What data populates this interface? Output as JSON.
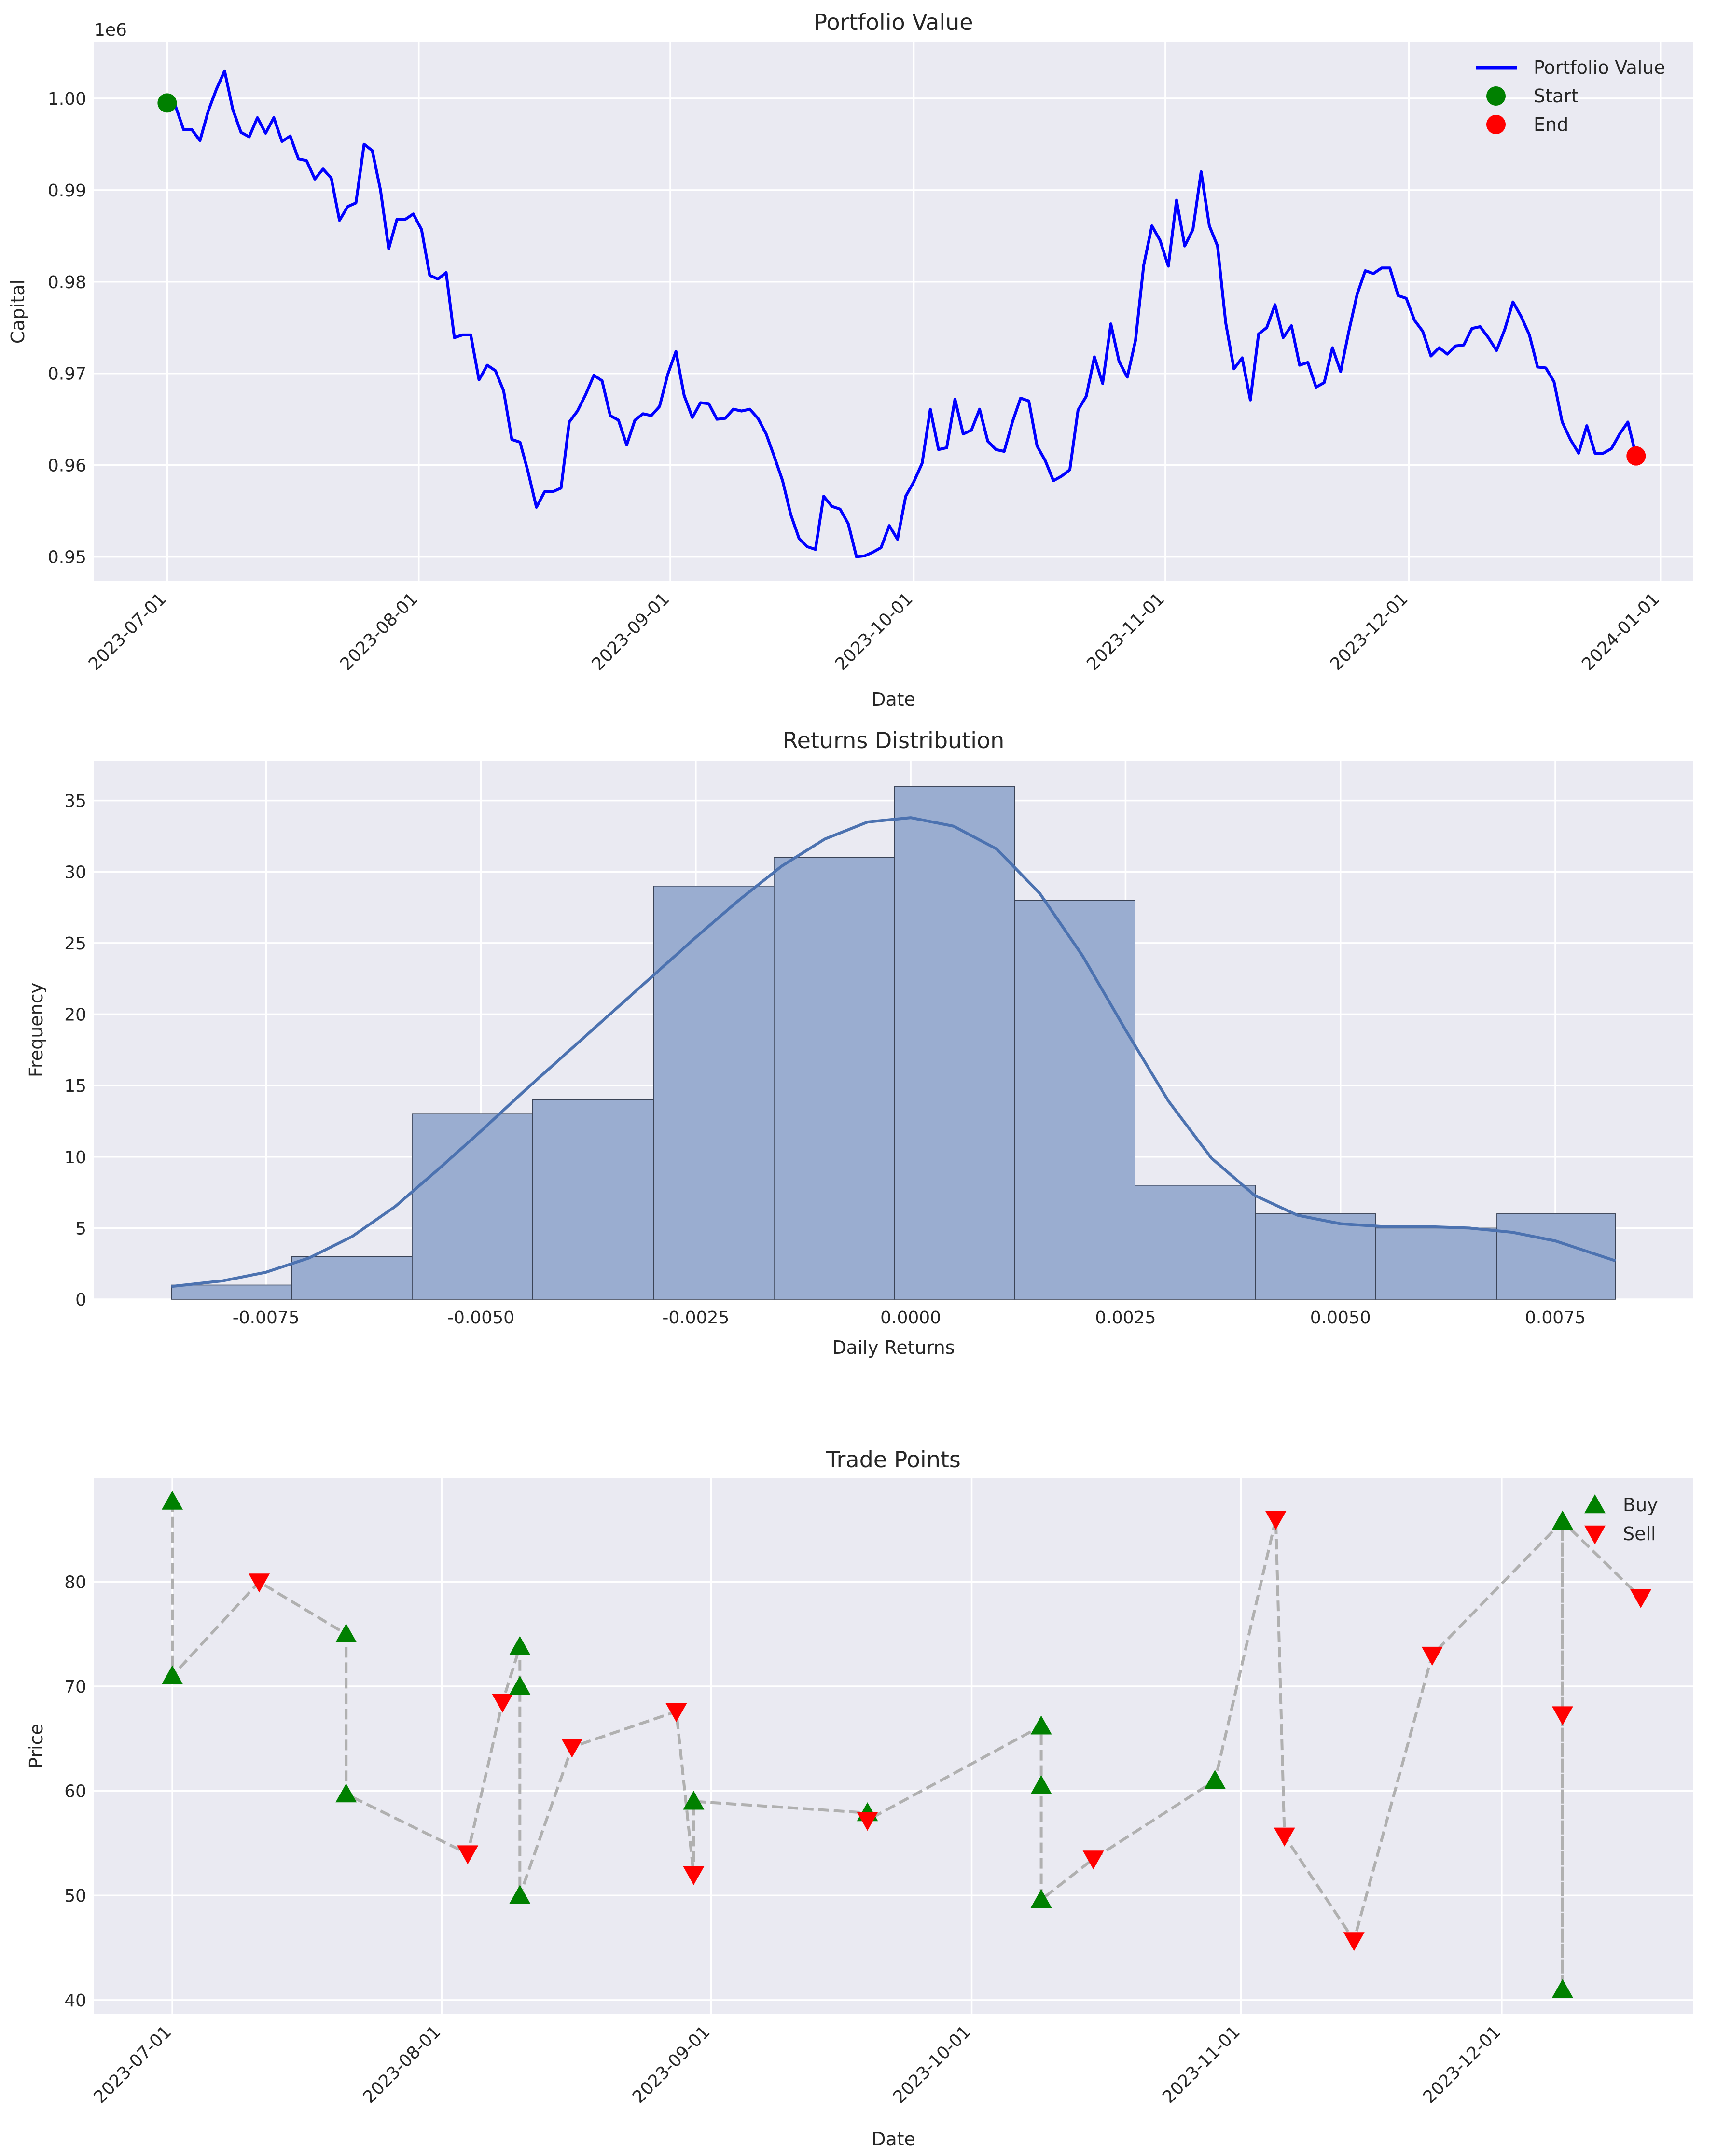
{
  "colors": {
    "background": "#eaeaf2",
    "grid": "#ffffff",
    "portfolio_line": "#0000ff",
    "start_marker": "#008000",
    "end_marker": "#ff0000",
    "hist_fill": "#9aadd0",
    "hist_edge": "#3a4356",
    "kde_line": "#4c72b0",
    "buy_marker": "#008000",
    "sell_marker": "#ff0000",
    "trade_path": "#b0b0b0"
  },
  "chart_data": [
    {
      "type": "line",
      "title": "Portfolio Value",
      "xlabel": "Date",
      "ylabel": "Capital",
      "y_offset_label": "1e6",
      "xlim": [
        "2023-06-22",
        "2024-01-05"
      ],
      "ylim": [
        947400,
        1006100
      ],
      "x_ticks": [
        "2023-07-01",
        "2023-08-01",
        "2023-09-01",
        "2023-10-01",
        "2023-11-01",
        "2023-12-01",
        "2024-01-01"
      ],
      "y_ticks": [
        950000,
        960000,
        970000,
        980000,
        990000,
        1000000
      ],
      "y_tick_labels": [
        "0.95",
        "0.96",
        "0.97",
        "0.98",
        "0.99",
        "1.00"
      ],
      "legend": {
        "placement": "upper right",
        "entries": [
          {
            "label": "Portfolio Value",
            "kind": "line",
            "color": "#0000ff"
          },
          {
            "label": "Start",
            "kind": "dot",
            "color": "#008000"
          },
          {
            "label": "End",
            "kind": "dot",
            "color": "#ff0000"
          }
        ]
      },
      "series": [
        {
          "name": "Portfolio Value",
          "start_date": "2023-07-01",
          "end_date": "2023-12-29",
          "values": [
            999500,
            999200,
            996600,
            996600,
            995400,
            998600,
            1001000,
            1003000,
            998800,
            996300,
            995800,
            997900,
            996200,
            997900,
            995300,
            995900,
            993400,
            993200,
            991200,
            992300,
            991300,
            986700,
            988200,
            988600,
            995000,
            994300,
            990000,
            983600,
            986800,
            986800,
            987400,
            985700,
            980700,
            980300,
            981000,
            973900,
            974200,
            974200,
            969300,
            970900,
            970300,
            968100,
            962800,
            962500,
            959200,
            955400,
            957100,
            957100,
            957500,
            964700,
            965900,
            967700,
            969800,
            969200,
            965400,
            964900,
            962200,
            964900,
            965600,
            965400,
            966400,
            969900,
            972400,
            967600,
            965200,
            966800,
            966700,
            965000,
            965100,
            966100,
            965900,
            966100,
            965100,
            963400,
            960900,
            958300,
            954600,
            952000,
            951100,
            950800,
            956600,
            955500,
            955200,
            953600,
            950000,
            950100,
            950500,
            951000,
            953400,
            951900,
            956600,
            958200,
            960200,
            966100,
            961700,
            961900,
            967200,
            963400,
            963800,
            966100,
            962600,
            961700,
            961500,
            964700,
            967300,
            967000,
            962100,
            960500,
            958300,
            958800,
            959500,
            966000,
            967500,
            971800,
            968900,
            975400,
            971300,
            969600,
            973600,
            981800,
            986100,
            984500,
            981700,
            988900,
            983900,
            985700,
            992000,
            986100,
            983900,
            975500,
            970500,
            971700,
            967100,
            974300,
            975000,
            977500,
            973900,
            975200,
            970900,
            971200,
            968500,
            969000,
            972800,
            970200,
            974600,
            978600,
            981200,
            980900,
            981500,
            981500,
            978500,
            978200,
            975800,
            974600,
            971900,
            972800,
            972100,
            973000,
            973100,
            974900,
            975100,
            973900,
            972500,
            974800,
            977800,
            976200,
            974200,
            970700,
            970600,
            969100,
            964700,
            962800,
            961300,
            964300,
            961300,
            961300,
            961800,
            963400,
            964700,
            961000
          ]
        }
      ],
      "markers": [
        {
          "label": "Start",
          "x": "2023-07-01",
          "y": 999500,
          "color": "#008000"
        },
        {
          "label": "End",
          "x": "2023-12-29",
          "y": 961000,
          "color": "#ff0000"
        }
      ]
    },
    {
      "type": "histogram",
      "title": "Returns Distribution",
      "xlabel": "Daily Returns",
      "ylabel": "Frequency",
      "xlim": [
        -0.0095,
        0.0091
      ],
      "ylim": [
        0,
        37.8
      ],
      "x_ticks": [
        -0.0075,
        -0.005,
        -0.0025,
        0.0,
        0.0025,
        0.005,
        0.0075
      ],
      "x_tick_labels": [
        "-0.0075",
        "-0.0050",
        "-0.0025",
        "0.0000",
        "0.0025",
        "0.0050",
        "0.0075"
      ],
      "y_ticks": [
        0,
        5,
        10,
        15,
        20,
        25,
        30,
        35
      ],
      "y_tick_labels": [
        "0",
        "5",
        "10",
        "15",
        "20",
        "25",
        "30",
        "35"
      ],
      "bin_edges": [
        -0.0086,
        -0.0072,
        -0.0058,
        -0.0044,
        -0.00299,
        -0.00159,
        -0.00019,
        0.00121,
        0.00261,
        0.00401,
        0.00541,
        0.00682,
        0.0082
      ],
      "counts": [
        1,
        3,
        13,
        14,
        29,
        31,
        36,
        28,
        8,
        6,
        5,
        6
      ],
      "kde": {
        "x": [
          -0.0086,
          -0.008,
          -0.0075,
          -0.007,
          -0.0065,
          -0.006,
          -0.0055,
          -0.005,
          -0.0045,
          -0.004,
          -0.0035,
          -0.003,
          -0.0025,
          -0.002,
          -0.0015,
          -0.001,
          -0.0005,
          0.0,
          0.0005,
          0.001,
          0.0015,
          0.002,
          0.0025,
          0.003,
          0.0035,
          0.004,
          0.0045,
          0.005,
          0.0055,
          0.006,
          0.0065,
          0.007,
          0.0075,
          0.0082
        ],
        "y": [
          0.9,
          1.3,
          1.9,
          2.9,
          4.4,
          6.5,
          9.1,
          11.8,
          14.6,
          17.3,
          20.0,
          22.7,
          25.4,
          28.0,
          30.4,
          32.3,
          33.5,
          33.8,
          33.2,
          31.6,
          28.5,
          24.1,
          18.9,
          13.9,
          9.9,
          7.3,
          5.9,
          5.3,
          5.1,
          5.1,
          5.0,
          4.7,
          4.1,
          2.7
        ]
      }
    },
    {
      "type": "scatter",
      "title": "Trade Points",
      "xlabel": "Date",
      "ylabel": "Price",
      "xlim": [
        "2023-06-22",
        "2023-12-23"
      ],
      "ylim": [
        38.7,
        89.9
      ],
      "x_ticks": [
        "2023-07-01",
        "2023-08-01",
        "2023-09-01",
        "2023-10-01",
        "2023-11-01",
        "2023-12-01"
      ],
      "y_ticks": [
        40,
        50,
        60,
        70,
        80
      ],
      "y_tick_labels": [
        "40",
        "50",
        "60",
        "70",
        "80"
      ],
      "legend": {
        "placement": "upper right",
        "entries": [
          {
            "label": "Buy",
            "kind": "triangle-up",
            "color": "#008000"
          },
          {
            "label": "Sell",
            "kind": "triangle-down",
            "color": "#ff0000"
          }
        ]
      },
      "trades": [
        {
          "date": "2023-07-01",
          "price": 87.7,
          "side": "buy"
        },
        {
          "date": "2023-07-01",
          "price": 71.0,
          "side": "buy"
        },
        {
          "date": "2023-07-11",
          "price": 80.0,
          "side": "sell"
        },
        {
          "date": "2023-07-21",
          "price": 75.0,
          "side": "buy"
        },
        {
          "date": "2023-07-21",
          "price": 59.7,
          "side": "buy"
        },
        {
          "date": "2023-08-04",
          "price": 54.0,
          "side": "sell"
        },
        {
          "date": "2023-08-08",
          "price": 68.5,
          "side": "sell"
        },
        {
          "date": "2023-08-10",
          "price": 73.8,
          "side": "buy"
        },
        {
          "date": "2023-08-10",
          "price": 70.0,
          "side": "buy"
        },
        {
          "date": "2023-08-10",
          "price": 50.0,
          "side": "buy"
        },
        {
          "date": "2023-08-16",
          "price": 64.2,
          "side": "sell"
        },
        {
          "date": "2023-08-28",
          "price": 67.6,
          "side": "sell"
        },
        {
          "date": "2023-08-30",
          "price": 52.0,
          "side": "sell"
        },
        {
          "date": "2023-08-30",
          "price": 59.0,
          "side": "buy"
        },
        {
          "date": "2023-09-19",
          "price": 57.9,
          "side": "buy"
        },
        {
          "date": "2023-09-19",
          "price": 57.2,
          "side": "sell"
        },
        {
          "date": "2023-10-09",
          "price": 66.2,
          "side": "buy"
        },
        {
          "date": "2023-10-09",
          "price": 60.5,
          "side": "buy"
        },
        {
          "date": "2023-10-09",
          "price": 49.6,
          "side": "buy"
        },
        {
          "date": "2023-10-15",
          "price": 53.5,
          "side": "sell"
        },
        {
          "date": "2023-10-29",
          "price": 61.0,
          "side": "buy"
        },
        {
          "date": "2023-11-05",
          "price": 86.0,
          "side": "sell"
        },
        {
          "date": "2023-11-06",
          "price": 55.7,
          "side": "sell"
        },
        {
          "date": "2023-11-14",
          "price": 45.7,
          "side": "sell"
        },
        {
          "date": "2023-11-23",
          "price": 73.0,
          "side": "sell"
        },
        {
          "date": "2023-12-08",
          "price": 85.8,
          "side": "buy"
        },
        {
          "date": "2023-12-08",
          "price": 67.3,
          "side": "sell"
        },
        {
          "date": "2023-12-08",
          "price": 41.0,
          "side": "buy"
        },
        {
          "date": "2023-12-08",
          "price": 85.8,
          "side": "buy"
        },
        {
          "date": "2023-12-17",
          "price": 78.5,
          "side": "sell"
        }
      ]
    }
  ]
}
